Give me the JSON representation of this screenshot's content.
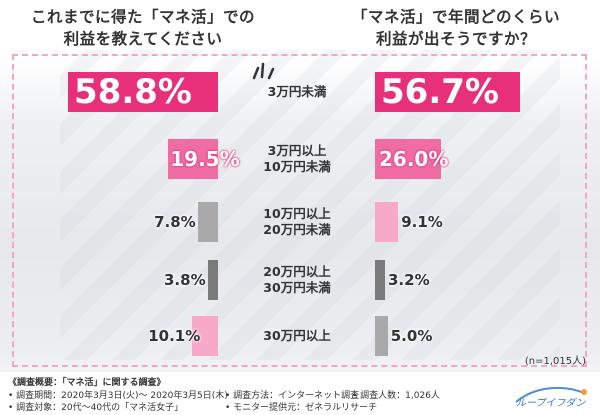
{
  "headings": {
    "left": [
      "これまでに得た「マネ活」での",
      "利益を教えてください"
    ],
    "right": [
      "「マネ活」で年間どのくらい",
      "利益が出そうですか？"
    ]
  },
  "colors": {
    "strong": "#e8307a",
    "mid": "#ef6da2",
    "light": "#f7a9c9",
    "gray": "#a9a9a9",
    "dark_gray": "#7a7a7a",
    "border": "#f3a7c4"
  },
  "chart_data": [
    {
      "type": "bar",
      "title": "これまでに得た「マネ活」での利益を教えてください",
      "categories": [
        "3万円未満",
        "3万円以上 10万円未満",
        "10万円以上 20万円未満",
        "20万円以上 30万円未満",
        "30万円以上"
      ],
      "values": [
        58.8,
        19.5,
        7.8,
        3.8,
        10.1
      ],
      "value_labels": [
        "58.8%",
        "19.5%",
        "7.8%",
        "3.8%",
        "10.1%"
      ],
      "unit": "%"
    },
    {
      "type": "bar",
      "title": "「マネ活」で年間どのくらい利益が出そうですか？",
      "categories": [
        "3万円未満",
        "3万円以上 10万円未満",
        "10万円以上 20万円未満",
        "20万円以上 30万円未満",
        "30万円以上"
      ],
      "values": [
        56.7,
        26.0,
        9.1,
        3.2,
        5.0
      ],
      "value_labels": [
        "56.7%",
        "26.0%",
        "9.1%",
        "3.2%",
        "5.0%"
      ],
      "unit": "%"
    }
  ],
  "category_lines": [
    [
      "3万円未満"
    ],
    [
      "3万円以上",
      "10万円未満"
    ],
    [
      "10万円以上",
      "20万円未満"
    ],
    [
      "20万円以上",
      "30万円未満"
    ],
    [
      "30万円以上"
    ]
  ],
  "sample_size": "(n=1,015人)",
  "footnote": {
    "title": "《調査概要：「マネ活」に関する調査》",
    "period": "• 調査期間：2020年3月3日(火)～ 2020年3月5日(木)",
    "target": "• 調査対象：20代～40代の「マネ活女子」",
    "method": "• 調査方法：インターネット調査",
    "provider": "• モニター提供元：ゼネラルリサーチ",
    "count": "• 調査人数：1,026人"
  },
  "logo_text": "ループイフダン"
}
